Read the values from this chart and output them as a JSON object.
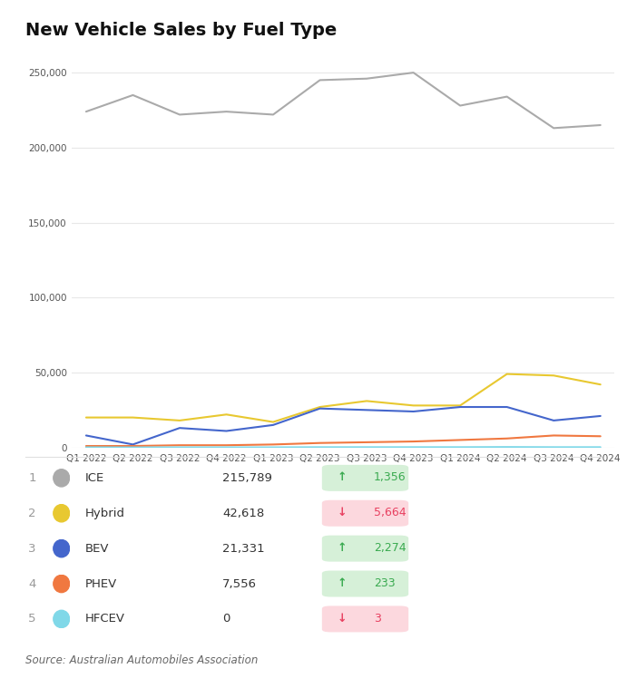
{
  "title": "New Vehicle Sales by Fuel Type",
  "source": "Source: Australian Automobiles Association",
  "x_labels": [
    "Q1 2022",
    "Q2 2022",
    "Q3 2022",
    "Q4 2022",
    "Q1 2023",
    "Q2 2023",
    "Q3 2023",
    "Q4 2023",
    "Q1 2024",
    "Q2 2024",
    "Q3 2024",
    "Q4 2024"
  ],
  "series": [
    {
      "name": "ICE",
      "color": "#aaaaaa",
      "values": [
        224000,
        235000,
        222000,
        224000,
        222000,
        245000,
        246000,
        250000,
        228000,
        234000,
        213000,
        215000
      ]
    },
    {
      "name": "Hybrid",
      "color": "#e8c830",
      "values": [
        20000,
        20000,
        18000,
        22000,
        17000,
        27000,
        31000,
        28000,
        28000,
        49000,
        48000,
        42000
      ]
    },
    {
      "name": "BEV",
      "color": "#4466cc",
      "values": [
        8000,
        2000,
        13000,
        11000,
        15000,
        26000,
        25000,
        24000,
        27000,
        27000,
        18000,
        21000
      ]
    },
    {
      "name": "PHEV",
      "color": "#f07840",
      "values": [
        1000,
        1000,
        1500,
        1500,
        2000,
        3000,
        3500,
        4000,
        5000,
        6000,
        8000,
        7500
      ]
    },
    {
      "name": "HFCEV",
      "color": "#80d8e8",
      "values": [
        100,
        50,
        100,
        100,
        100,
        200,
        200,
        200,
        200,
        300,
        200,
        200
      ]
    }
  ],
  "legend_items": [
    {
      "rank": 1,
      "label": "ICE",
      "value": "215,789",
      "change": "1,356",
      "up": true,
      "color": "#aaaaaa"
    },
    {
      "rank": 2,
      "label": "Hybrid",
      "value": "42,618",
      "change": "5,664",
      "up": false,
      "color": "#e8c830"
    },
    {
      "rank": 3,
      "label": "BEV",
      "value": "21,331",
      "change": "2,274",
      "up": true,
      "color": "#4466cc"
    },
    {
      "rank": 4,
      "label": "PHEV",
      "value": "7,556",
      "change": "233",
      "up": true,
      "color": "#f07840"
    },
    {
      "rank": 5,
      "label": "HFCEV",
      "value": "0",
      "change": "3",
      "up": false,
      "color": "#80d8e8"
    }
  ],
  "ylim": [
    0,
    260000
  ],
  "yticks": [
    0,
    50000,
    100000,
    150000,
    200000,
    250000
  ],
  "background_color": "#ffffff",
  "grid_color": "#e8e8e8"
}
